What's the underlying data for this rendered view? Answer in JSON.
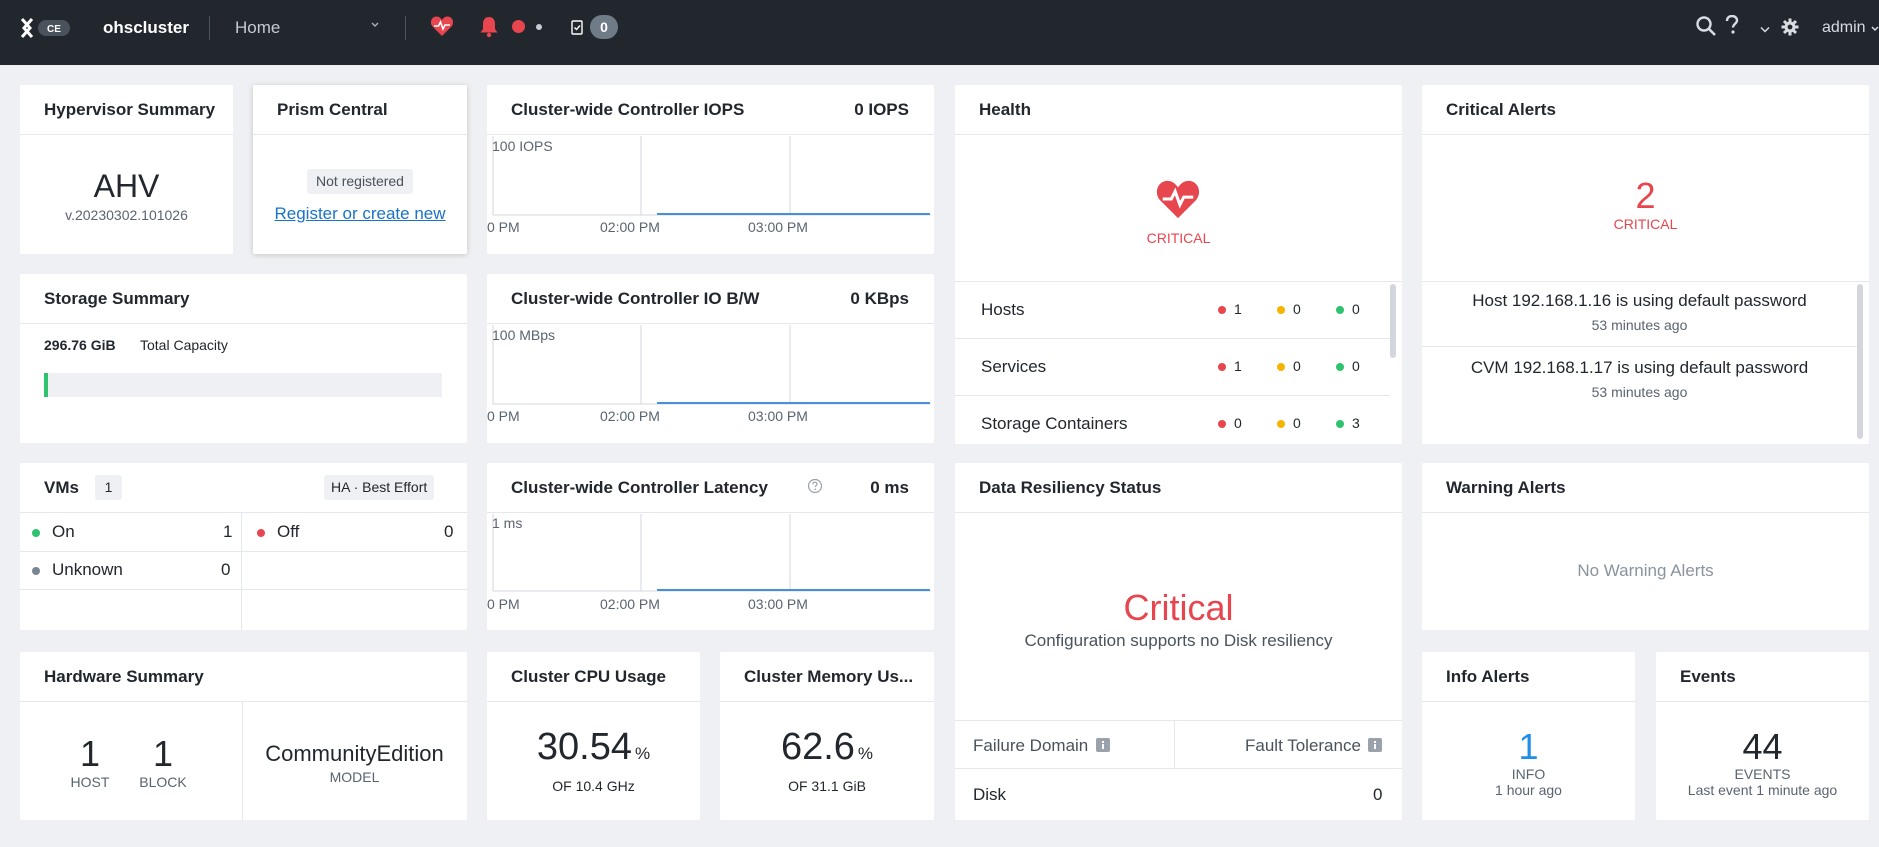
{
  "topbar": {
    "logo_text": "CE",
    "cluster_name": "ohscluster",
    "nav_label": "Home",
    "tasks_count": "0",
    "user": "admin"
  },
  "hypervisor": {
    "title": "Hypervisor Summary",
    "name": "AHV",
    "version": "v.20230302.101026"
  },
  "prism": {
    "title": "Prism Central",
    "status": "Not registered",
    "link": "Register or create new"
  },
  "iops": {
    "title": "Cluster-wide Controller IOPS",
    "value": "0 IOPS",
    "ymax": "100 IOPS",
    "ticks": [
      "0 PM",
      "02:00 PM",
      "03:00 PM"
    ]
  },
  "iobw": {
    "title": "Cluster-wide Controller IO B/W",
    "value": "0 KBps",
    "ymax": "100 MBps",
    "ticks": [
      "0 PM",
      "02:00 PM",
      "03:00 PM"
    ]
  },
  "latency": {
    "title": "Cluster-wide Controller Latency",
    "value": "0 ms",
    "ymax": "1 ms",
    "ticks": [
      "0 PM",
      "02:00 PM",
      "03:00 PM"
    ]
  },
  "health": {
    "title": "Health",
    "status": "CRITICAL",
    "rows": [
      {
        "label": "Hosts",
        "critical": "1",
        "warning": "0",
        "good": "0"
      },
      {
        "label": "Services",
        "critical": "1",
        "warning": "0",
        "good": "0"
      },
      {
        "label": "Storage Containers",
        "critical": "0",
        "warning": "0",
        "good": "3"
      }
    ]
  },
  "critical_alerts": {
    "title": "Critical Alerts",
    "count": "2",
    "label": "CRITICAL",
    "items": [
      {
        "text": "Host 192.168.1.16 is using default password",
        "time": "53 minutes ago"
      },
      {
        "text": "CVM 192.168.1.17 is using default password",
        "time": "53 minutes ago"
      }
    ]
  },
  "storage": {
    "title": "Storage Summary",
    "capacity": "296.76 GiB",
    "capacity_label": "Total Capacity",
    "used_fraction": 0.01
  },
  "vms": {
    "title": "VMs",
    "count": "1",
    "ha_label": "HA",
    "ha_mode": "Best Effort",
    "on_label": "On",
    "on_value": "1",
    "off_label": "Off",
    "off_value": "0",
    "unknown_label": "Unknown",
    "unknown_value": "0"
  },
  "resiliency": {
    "title": "Data Resiliency Status",
    "status": "Critical",
    "message": "Configuration supports no Disk resiliency",
    "col1": "Failure Domain",
    "col2": "Fault Tolerance",
    "row_label": "Disk",
    "row_value": "0"
  },
  "warning_alerts": {
    "title": "Warning Alerts",
    "empty": "No Warning Alerts"
  },
  "hardware": {
    "title": "Hardware Summary",
    "hosts": "1",
    "hosts_label": "HOST",
    "blocks": "1",
    "blocks_label": "BLOCK",
    "model": "CommunityEdition",
    "model_label": "MODEL"
  },
  "cpu": {
    "title": "Cluster CPU Usage",
    "value": "30.54",
    "unit": "%",
    "of": "OF 10.4 GHz"
  },
  "memory": {
    "title": "Cluster Memory Us...",
    "value": "62.6",
    "unit": "%",
    "of": "OF 31.1 GiB"
  },
  "info_alerts": {
    "title": "Info Alerts",
    "count": "1",
    "label": "INFO",
    "time": "1 hour ago"
  },
  "events": {
    "title": "Events",
    "count": "44",
    "label": "EVENTS",
    "time": "Last event 1 minute ago"
  },
  "colors": {
    "critical": "#e8464f",
    "info": "#1f8ee6",
    "link": "#1a73c8",
    "topbar": "#22272e"
  }
}
